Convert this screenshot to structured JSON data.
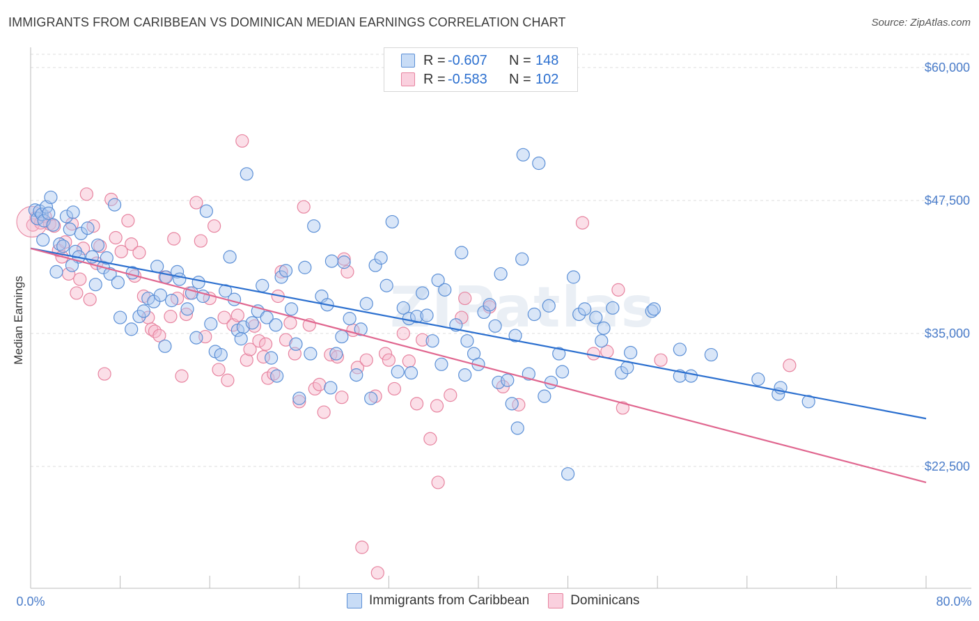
{
  "title": "IMMIGRANTS FROM CARIBBEAN VS DOMINICAN MEDIAN EARNINGS CORRELATION CHART",
  "source": "Source: ZipAtlas.com",
  "watermark": "ZIPatlas",
  "legend": {
    "rows": [
      {
        "r_label": "R =",
        "r_value": "-0.607",
        "n_label": "N =",
        "n_value": "148"
      },
      {
        "r_label": "R =",
        "r_value": "-0.583",
        "n_label": "N =",
        "n_value": "102"
      }
    ]
  },
  "bottom_legend": [
    "Immigrants from Caribbean",
    "Dominicans"
  ],
  "colors": {
    "blue_fill": "#aac8f0",
    "blue_stroke": "#5b8fd6",
    "blue_line": "#2b6fcf",
    "pink_fill": "#f6b9cd",
    "pink_stroke": "#e7839f",
    "pink_line": "#e0668f",
    "tick_text": "#4a7cc9",
    "grid": "#dddddd"
  },
  "chart_data": {
    "type": "scatter",
    "title": "IMMIGRANTS FROM CARIBBEAN VS DOMINICAN MEDIAN EARNINGS CORRELATION CHART",
    "xlabel": "",
    "ylabel": "Median Earnings",
    "xlim": [
      0,
      80
    ],
    "ylim": [
      10000,
      61000
    ],
    "x_tick_labels": [
      "0.0%",
      "80.0%"
    ],
    "y_ticks": [
      22500,
      35000,
      47500,
      60000
    ],
    "y_tick_labels": [
      "$22,500",
      "$35,000",
      "$47,500",
      "$60,000"
    ],
    "grid": true,
    "legend_position": "top-center",
    "series": [
      {
        "name": "Immigrants from Caribbean",
        "R": -0.607,
        "N": 148,
        "trend": {
          "x": [
            0,
            80
          ],
          "y": [
            43000,
            27000
          ]
        },
        "points": [
          [
            0.4,
            46.6
          ],
          [
            0.6,
            45.8
          ],
          [
            0.8,
            46.5
          ],
          [
            1.0,
            46.2
          ],
          [
            1.2,
            45.6
          ],
          [
            1.4,
            46.9
          ],
          [
            1.6,
            46.3
          ],
          [
            1.8,
            47.8
          ],
          [
            2.0,
            45.2
          ],
          [
            2.6,
            43.4
          ],
          [
            2.9,
            43.2
          ],
          [
            3.2,
            46.0
          ],
          [
            3.5,
            44.8
          ],
          [
            3.8,
            46.4
          ],
          [
            4.0,
            42.7
          ],
          [
            4.3,
            42.2
          ],
          [
            4.5,
            44.4
          ],
          [
            5.1,
            44.9
          ],
          [
            5.5,
            42.2
          ],
          [
            6.0,
            43.3
          ],
          [
            5.8,
            39.6
          ],
          [
            6.5,
            41.2
          ],
          [
            6.8,
            42.1
          ],
          [
            7.1,
            40.6
          ],
          [
            7.5,
            47.1
          ],
          [
            8.0,
            36.5
          ],
          [
            9.1,
            40.7
          ],
          [
            9.7,
            36.6
          ],
          [
            10.1,
            37.1
          ],
          [
            10.5,
            38.3
          ],
          [
            11.0,
            38.0
          ],
          [
            11.3,
            41.3
          ],
          [
            11.6,
            38.6
          ],
          [
            12.1,
            40.3
          ],
          [
            12.6,
            38.1
          ],
          [
            13.1,
            40.8
          ],
          [
            13.3,
            40.1
          ],
          [
            14.0,
            37.3
          ],
          [
            14.4,
            38.8
          ],
          [
            15.0,
            39.8
          ],
          [
            15.4,
            38.5
          ],
          [
            15.7,
            46.5
          ],
          [
            16.1,
            35.9
          ],
          [
            16.5,
            33.3
          ],
          [
            17.0,
            33.0
          ],
          [
            17.4,
            39.0
          ],
          [
            17.8,
            42.2
          ],
          [
            18.2,
            38.2
          ],
          [
            18.5,
            35.3
          ],
          [
            19.0,
            35.6
          ],
          [
            19.3,
            50.0
          ],
          [
            19.8,
            36.0
          ],
          [
            20.3,
            37.1
          ],
          [
            20.7,
            39.5
          ],
          [
            21.1,
            36.5
          ],
          [
            21.5,
            32.7
          ],
          [
            21.9,
            35.8
          ],
          [
            22.4,
            40.3
          ],
          [
            22.8,
            40.9
          ],
          [
            23.3,
            37.3
          ],
          [
            23.7,
            34.0
          ],
          [
            24.0,
            28.9
          ],
          [
            24.5,
            41.2
          ],
          [
            25.0,
            33.1
          ],
          [
            25.3,
            45.1
          ],
          [
            26.0,
            38.5
          ],
          [
            26.5,
            37.7
          ],
          [
            26.9,
            41.8
          ],
          [
            27.3,
            33.1
          ],
          [
            27.8,
            34.7
          ],
          [
            28.0,
            41.7
          ],
          [
            28.5,
            36.4
          ],
          [
            29.1,
            31.1
          ],
          [
            29.5,
            35.4
          ],
          [
            30.0,
            37.8
          ],
          [
            30.4,
            28.9
          ],
          [
            30.8,
            41.4
          ],
          [
            31.3,
            42.1
          ],
          [
            31.8,
            39.5
          ],
          [
            32.3,
            45.5
          ],
          [
            32.8,
            31.4
          ],
          [
            33.3,
            37.4
          ],
          [
            33.8,
            36.4
          ],
          [
            34.5,
            36.6
          ],
          [
            35.0,
            38.8
          ],
          [
            35.4,
            36.7
          ],
          [
            35.9,
            34.3
          ],
          [
            36.4,
            40.0
          ],
          [
            36.7,
            32.1
          ],
          [
            37.0,
            39.1
          ],
          [
            38.0,
            35.8
          ],
          [
            38.5,
            42.6
          ],
          [
            39.0,
            34.3
          ],
          [
            39.6,
            33.1
          ],
          [
            40.0,
            32.1
          ],
          [
            40.5,
            37.0
          ],
          [
            41.0,
            37.7
          ],
          [
            41.5,
            35.7
          ],
          [
            41.8,
            30.4
          ],
          [
            42.0,
            40.6
          ],
          [
            42.6,
            30.6
          ],
          [
            43.3,
            34.8
          ],
          [
            43.5,
            26.1
          ],
          [
            43.9,
            42.0
          ],
          [
            44.0,
            51.8
          ],
          [
            44.5,
            31.2
          ],
          [
            45.0,
            36.8
          ],
          [
            45.4,
            51.0
          ],
          [
            45.9,
            29.1
          ],
          [
            46.3,
            37.6
          ],
          [
            46.5,
            30.4
          ],
          [
            47.5,
            31.4
          ],
          [
            48.5,
            40.3
          ],
          [
            49.0,
            36.8
          ],
          [
            49.5,
            37.3
          ],
          [
            50.5,
            36.5
          ],
          [
            51.0,
            34.3
          ],
          [
            51.2,
            35.5
          ],
          [
            52.0,
            37.4
          ],
          [
            52.8,
            31.3
          ],
          [
            53.3,
            31.8
          ],
          [
            53.6,
            33.2
          ],
          [
            55.5,
            37.1
          ],
          [
            55.7,
            37.3
          ],
          [
            48.0,
            21.8
          ],
          [
            58.0,
            31.0
          ],
          [
            58.0,
            33.5
          ],
          [
            59.0,
            31.0
          ],
          [
            60.8,
            33.0
          ],
          [
            65.0,
            30.7
          ],
          [
            66.8,
            29.3
          ],
          [
            67.0,
            29.9
          ],
          [
            69.5,
            28.6
          ],
          [
            12.0,
            33.8
          ],
          [
            14.8,
            34.6
          ],
          [
            22.0,
            31.0
          ],
          [
            18.8,
            34.5
          ],
          [
            26.8,
            29.9
          ],
          [
            34.0,
            31.3
          ],
          [
            38.8,
            31.1
          ],
          [
            43.0,
            28.4
          ],
          [
            47.2,
            33.1
          ],
          [
            7.8,
            39.8
          ],
          [
            9.0,
            35.4
          ],
          [
            3.7,
            41.4
          ],
          [
            1.1,
            43.8
          ],
          [
            2.3,
            40.8
          ]
        ]
      },
      {
        "name": "Dominicans",
        "R": -0.583,
        "N": 102,
        "trend": {
          "x": [
            0,
            80
          ],
          "y": [
            43000,
            21000
          ]
        },
        "points": [
          [
            0.2,
            45.2
          ],
          [
            0.5,
            45.9
          ],
          [
            0.9,
            45.4
          ],
          [
            1.3,
            46.0
          ],
          [
            1.7,
            45.3
          ],
          [
            2.1,
            45.1
          ],
          [
            2.5,
            42.8
          ],
          [
            2.8,
            42.2
          ],
          [
            3.1,
            43.6
          ],
          [
            3.4,
            40.6
          ],
          [
            3.7,
            45.3
          ],
          [
            4.1,
            38.8
          ],
          [
            4.4,
            40.1
          ],
          [
            4.7,
            43.0
          ],
          [
            5.0,
            48.1
          ],
          [
            5.3,
            38.2
          ],
          [
            5.6,
            45.1
          ],
          [
            5.9,
            41.6
          ],
          [
            6.2,
            43.2
          ],
          [
            6.6,
            31.2
          ],
          [
            7.2,
            47.6
          ],
          [
            7.6,
            44.0
          ],
          [
            8.1,
            42.7
          ],
          [
            8.7,
            45.6
          ],
          [
            9.0,
            43.4
          ],
          [
            9.3,
            40.4
          ],
          [
            9.7,
            42.6
          ],
          [
            10.1,
            38.5
          ],
          [
            10.5,
            36.5
          ],
          [
            10.8,
            35.4
          ],
          [
            11.1,
            35.2
          ],
          [
            11.5,
            34.8
          ],
          [
            12.0,
            40.3
          ],
          [
            12.5,
            36.6
          ],
          [
            12.8,
            43.9
          ],
          [
            13.1,
            38.3
          ],
          [
            13.5,
            31.0
          ],
          [
            13.9,
            36.8
          ],
          [
            14.2,
            38.8
          ],
          [
            14.8,
            47.3
          ],
          [
            15.2,
            43.7
          ],
          [
            15.6,
            34.7
          ],
          [
            16.0,
            38.3
          ],
          [
            16.4,
            45.1
          ],
          [
            16.8,
            31.6
          ],
          [
            17.3,
            36.5
          ],
          [
            17.6,
            30.6
          ],
          [
            18.1,
            35.8
          ],
          [
            18.5,
            36.7
          ],
          [
            18.9,
            53.1
          ],
          [
            19.3,
            32.5
          ],
          [
            19.6,
            33.5
          ],
          [
            20.0,
            35.7
          ],
          [
            20.4,
            34.3
          ],
          [
            20.8,
            32.8
          ],
          [
            21.2,
            30.8
          ],
          [
            21.7,
            31.2
          ],
          [
            22.1,
            38.5
          ],
          [
            22.4,
            40.8
          ],
          [
            22.8,
            34.4
          ],
          [
            23.2,
            36.0
          ],
          [
            23.6,
            33.1
          ],
          [
            24.0,
            28.6
          ],
          [
            24.4,
            46.9
          ],
          [
            24.9,
            35.8
          ],
          [
            25.4,
            29.8
          ],
          [
            25.8,
            30.2
          ],
          [
            26.2,
            27.6
          ],
          [
            26.8,
            33.0
          ],
          [
            27.4,
            32.8
          ],
          [
            27.8,
            29.0
          ],
          [
            28.0,
            42.0
          ],
          [
            28.3,
            40.8
          ],
          [
            28.8,
            35.3
          ],
          [
            29.2,
            31.8
          ],
          [
            29.6,
            14.9
          ],
          [
            30.0,
            32.5
          ],
          [
            30.8,
            29.1
          ],
          [
            31.0,
            12.5
          ],
          [
            31.7,
            33.1
          ],
          [
            32.0,
            32.5
          ],
          [
            32.5,
            29.8
          ],
          [
            33.3,
            35.0
          ],
          [
            33.8,
            32.4
          ],
          [
            34.5,
            28.4
          ],
          [
            35.0,
            34.4
          ],
          [
            35.7,
            25.1
          ],
          [
            36.3,
            28.2
          ],
          [
            36.4,
            21.0
          ],
          [
            37.5,
            29.2
          ],
          [
            38.5,
            36.5
          ],
          [
            38.8,
            38.3
          ],
          [
            41.0,
            37.5
          ],
          [
            42.2,
            30.0
          ],
          [
            43.6,
            28.3
          ],
          [
            49.3,
            45.4
          ],
          [
            50.3,
            33.1
          ],
          [
            51.5,
            33.3
          ],
          [
            52.5,
            39.1
          ],
          [
            52.9,
            28.0
          ],
          [
            56.3,
            32.5
          ],
          [
            67.8,
            32.0
          ],
          [
            21.0,
            34.0
          ]
        ]
      }
    ]
  }
}
